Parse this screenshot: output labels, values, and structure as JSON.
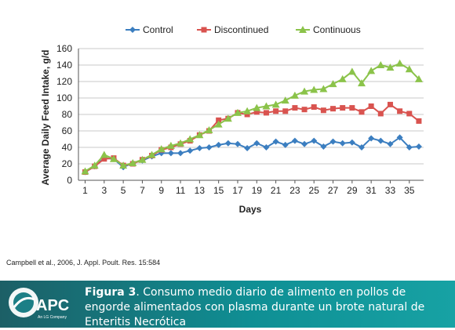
{
  "chart_data": {
    "type": "line",
    "ylabel": "Average Daily Feed Intake, g/d",
    "xlabel": "Days",
    "ylim": [
      0,
      160
    ],
    "yticks": [
      0,
      20,
      40,
      60,
      80,
      100,
      120,
      140,
      160
    ],
    "xticks": [
      1,
      3,
      5,
      7,
      9,
      11,
      13,
      15,
      17,
      19,
      21,
      23,
      25,
      27,
      29,
      31,
      33,
      35
    ],
    "xlim": [
      0.3,
      36.5
    ],
    "grid": true,
    "legend_position": "top",
    "series": [
      {
        "name": "Control",
        "color": "#3b7ec0",
        "marker": "diamond",
        "x": [
          1,
          2,
          3,
          4,
          5,
          6,
          7,
          8,
          9,
          10,
          11,
          12,
          13,
          14,
          15,
          16,
          17,
          18,
          19,
          20,
          21,
          22,
          23,
          24,
          25,
          26,
          27,
          28,
          29,
          30,
          31,
          32,
          33,
          34,
          35,
          36
        ],
        "values": [
          10,
          17,
          27,
          26,
          16,
          21,
          24,
          29,
          33,
          33,
          33,
          36,
          39,
          40,
          43,
          45,
          44,
          39,
          45,
          40,
          47,
          43,
          48,
          44,
          48,
          41,
          47,
          45,
          46,
          40,
          51,
          48,
          44,
          52,
          40,
          41
        ]
      },
      {
        "name": "Discontinued",
        "color": "#d9534f",
        "marker": "square",
        "x": [
          1,
          2,
          3,
          4,
          5,
          6,
          7,
          8,
          9,
          10,
          11,
          12,
          13,
          14,
          15,
          16,
          17,
          18,
          19,
          20,
          21,
          22,
          23,
          24,
          25,
          26,
          27,
          28,
          29,
          30,
          31,
          32,
          33,
          34,
          35,
          36
        ],
        "values": [
          10,
          17,
          26,
          27,
          18,
          20,
          25,
          30,
          37,
          40,
          44,
          48,
          55,
          60,
          73,
          75,
          82,
          80,
          83,
          82,
          84,
          84,
          88,
          86,
          89,
          85,
          87,
          88,
          88,
          83,
          90,
          81,
          92,
          84,
          81,
          72
        ]
      },
      {
        "name": "Continuous",
        "color": "#8bc34a",
        "marker": "triangle",
        "x": [
          1,
          2,
          3,
          4,
          5,
          6,
          7,
          8,
          9,
          10,
          11,
          12,
          13,
          14,
          15,
          16,
          17,
          18,
          19,
          20,
          21,
          22,
          23,
          24,
          25,
          26,
          27,
          28,
          29,
          30,
          31,
          32,
          33,
          34,
          35,
          36
        ],
        "values": [
          11,
          18,
          31,
          26,
          18,
          21,
          25,
          31,
          38,
          42,
          45,
          50,
          55,
          61,
          68,
          75,
          82,
          84,
          88,
          90,
          92,
          97,
          103,
          108,
          110,
          111,
          117,
          123,
          132,
          118,
          133,
          140,
          137,
          142,
          135,
          123
        ]
      }
    ]
  },
  "citation": "Campbell et al., 2006,  J. Appl. Poult. Res. 15:584",
  "footer": {
    "logo_text": "APC",
    "logo_subtext": "An LG Company",
    "caption_label": "Figura 3",
    "caption_text": ". Consumo medio diario de alimento en pollos de engorde alimentados con plasma durante un brote natural de Enteritis Necrótica"
  }
}
